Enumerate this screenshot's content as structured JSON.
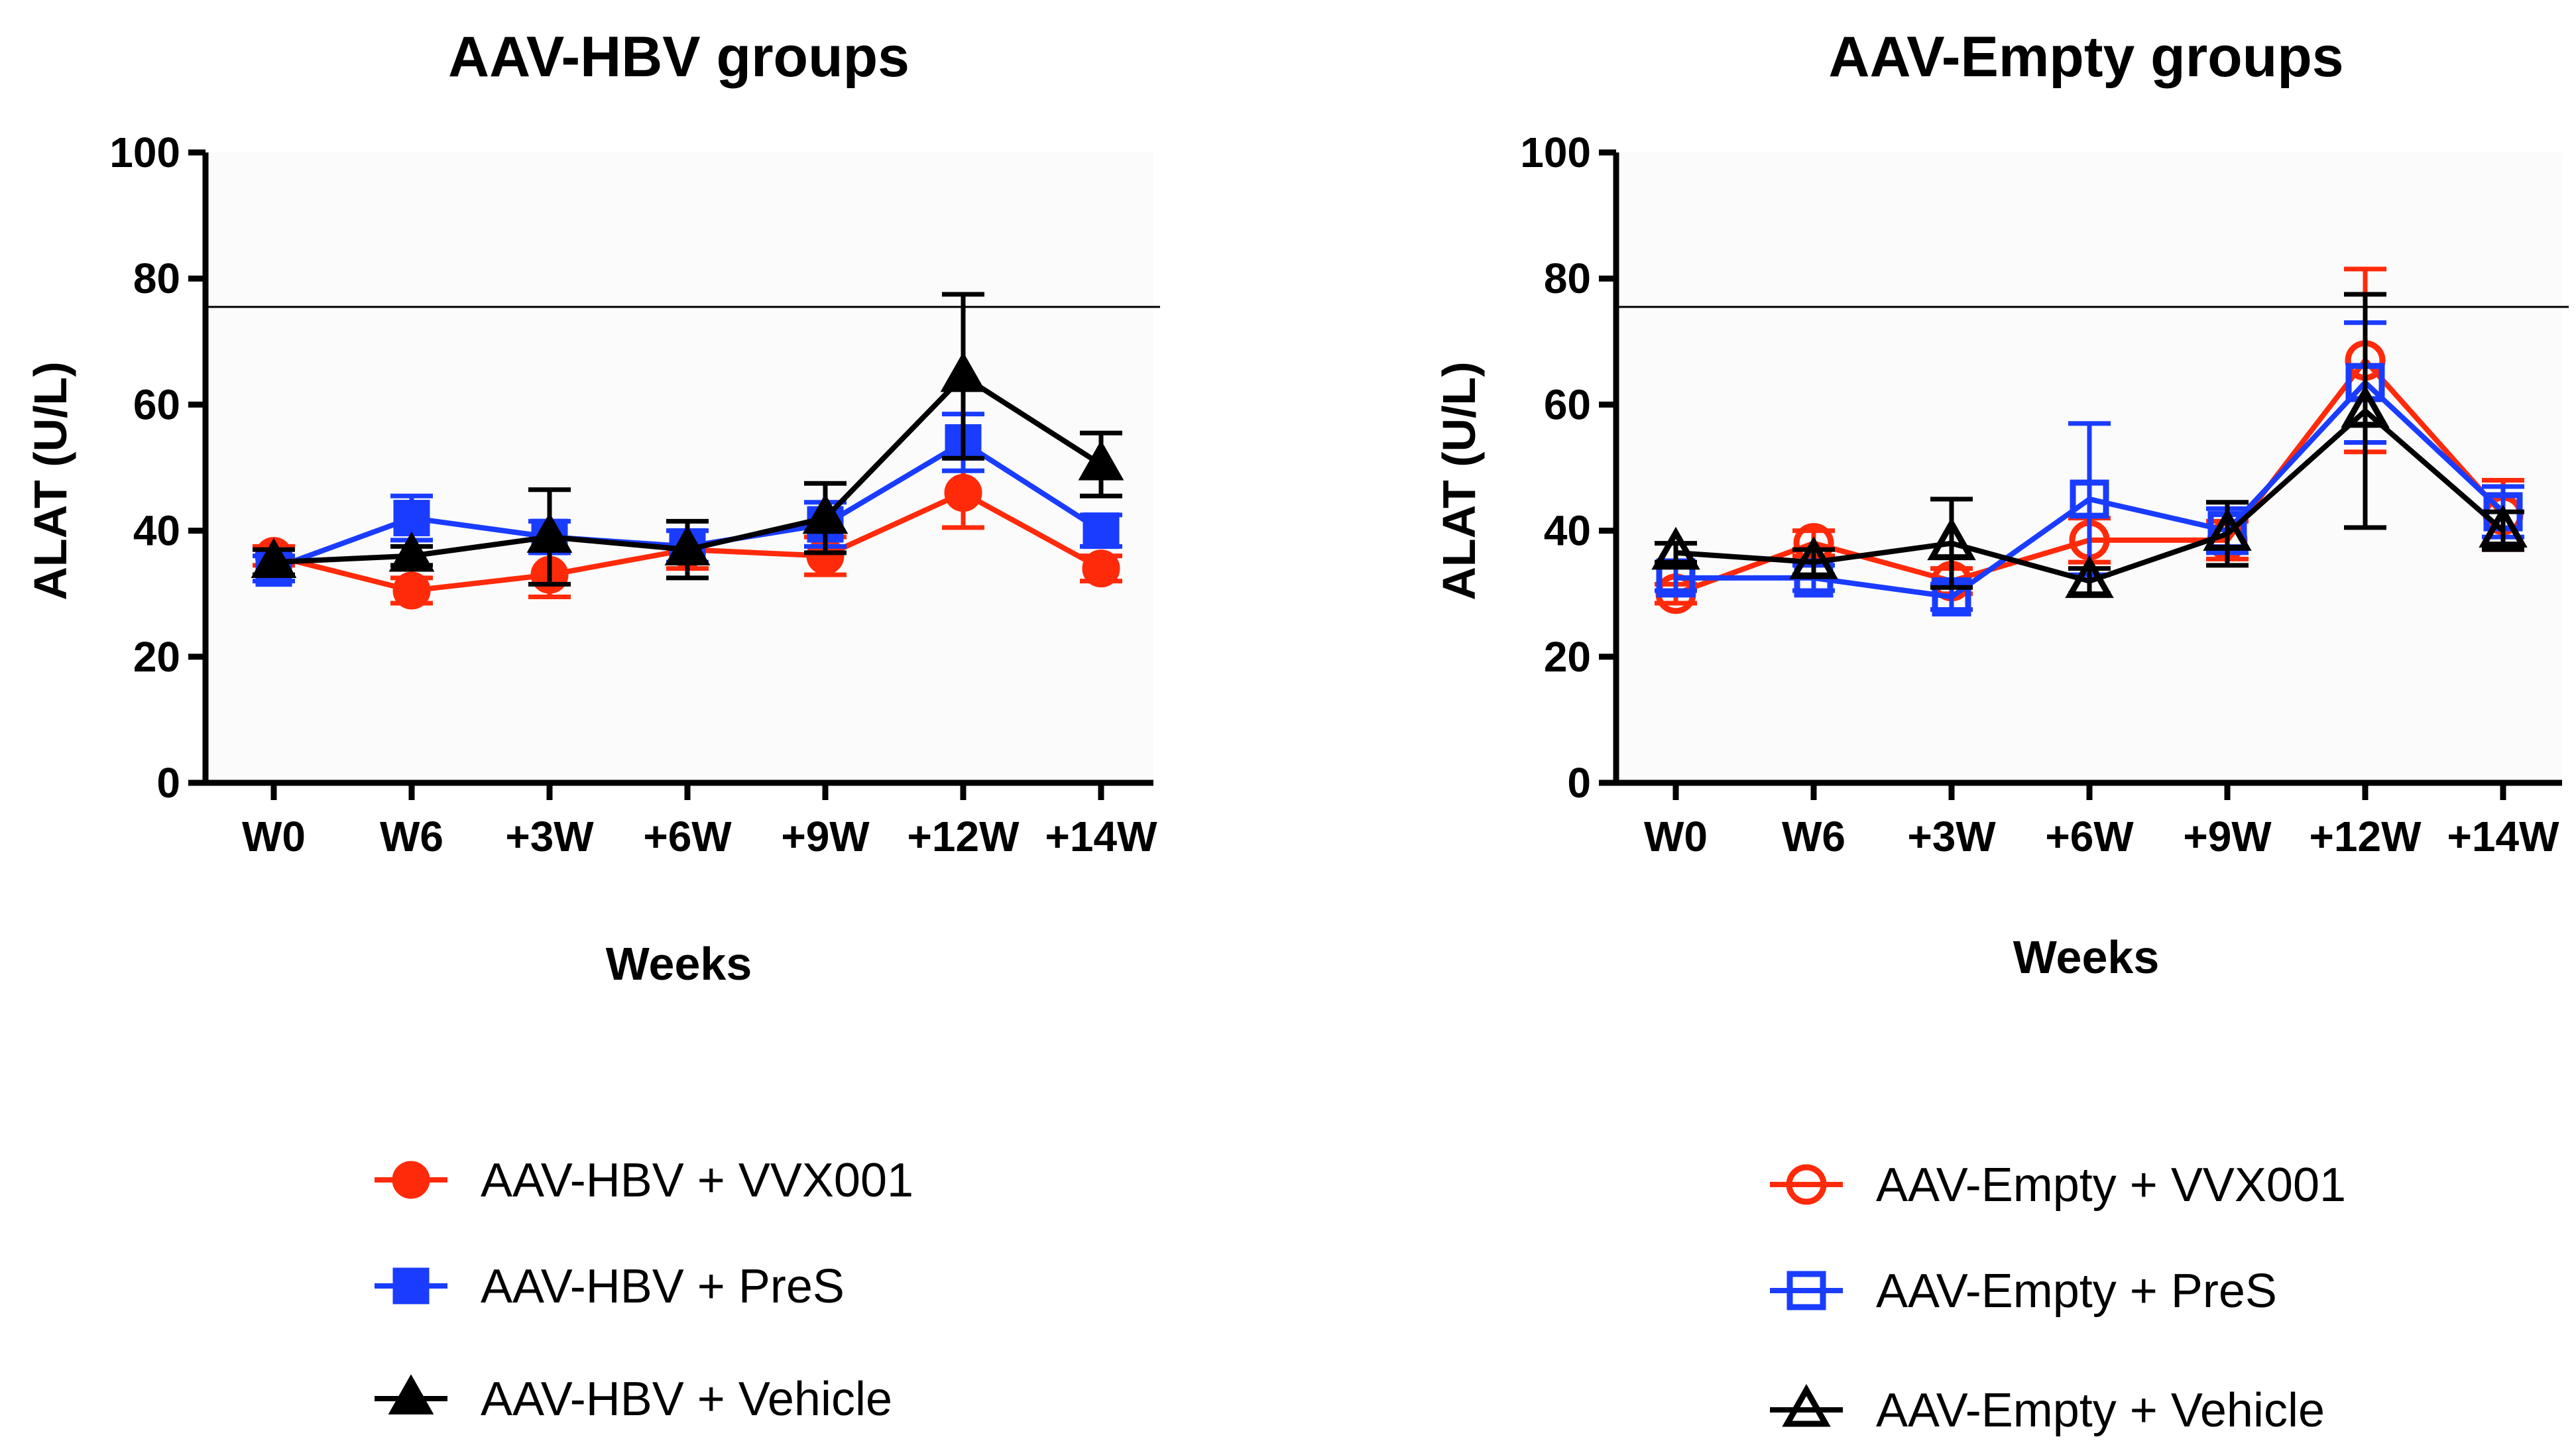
{
  "chart_data": [
    {
      "type": "line",
      "title": "AAV-HBV groups",
      "xlabel": "Weeks",
      "ylabel": "ALAT (U/L)",
      "ylim": [
        0,
        100
      ],
      "yticks": [
        "0",
        "20",
        "40",
        "60",
        "80",
        "100"
      ],
      "categories": [
        "W0",
        "W6",
        "+3W",
        "+6W",
        "+9W",
        "+12W",
        "+14W"
      ],
      "reference_line": 75.5,
      "marker_fill": "filled",
      "series": [
        {
          "name": "AAV-HBV + VVX001",
          "color": "#ff2a0a",
          "marker": "circle",
          "values": [
            36,
            30.5,
            33,
            37,
            36,
            46,
            34
          ],
          "errors": [
            1.5,
            2,
            3.5,
            3,
            3,
            5.5,
            2
          ]
        },
        {
          "name": "AAV-HBV + PreS",
          "color": "#1a3cff",
          "marker": "square",
          "values": [
            34,
            42,
            39,
            37.5,
            41,
            54,
            40
          ],
          "errors": [
            2,
            3.5,
            2.5,
            2.5,
            3.5,
            4.5,
            2.5
          ]
        },
        {
          "name": "AAV-HBV + Vehicle",
          "color": "#000000",
          "marker": "triangle",
          "values": [
            35,
            36,
            39,
            37,
            42,
            64.5,
            50.5
          ],
          "errors": [
            2,
            1.5,
            7.5,
            4.5,
            5.5,
            13,
            5
          ]
        }
      ]
    },
    {
      "type": "line",
      "title": "AAV-Empty groups",
      "xlabel": "Weeks",
      "ylabel": "ALAT (U/L)",
      "ylim": [
        0,
        100
      ],
      "yticks": [
        "0",
        "20",
        "40",
        "60",
        "80",
        "100"
      ],
      "categories": [
        "W0",
        "W6",
        "+3W",
        "+6W",
        "+9W",
        "+12W",
        "+14W"
      ],
      "reference_line": 75.5,
      "marker_fill": "open",
      "series": [
        {
          "name": "AAV-Empty + VVX001",
          "color": "#ff2a0a",
          "marker": "circle",
          "values": [
            30,
            38,
            32,
            38.5,
            38.5,
            67,
            42.5
          ],
          "errors": [
            1.5,
            2,
            2,
            3.5,
            3,
            14.5,
            5.5
          ]
        },
        {
          "name": "AAV-Empty + PreS",
          "color": "#1a3cff",
          "marker": "square",
          "values": [
            32.5,
            32.5,
            29.5,
            45,
            40,
            63.5,
            43
          ],
          "errors": [
            2,
            2,
            2,
            12,
            3.5,
            9.5,
            4
          ]
        },
        {
          "name": "AAV-Empty + Vehicle",
          "color": "#000000",
          "marker": "triangle",
          "values": [
            36.5,
            35,
            38,
            32,
            39.5,
            59,
            40
          ],
          "errors": [
            1.5,
            2,
            7,
            2,
            5,
            18.5,
            3
          ]
        }
      ]
    }
  ]
}
